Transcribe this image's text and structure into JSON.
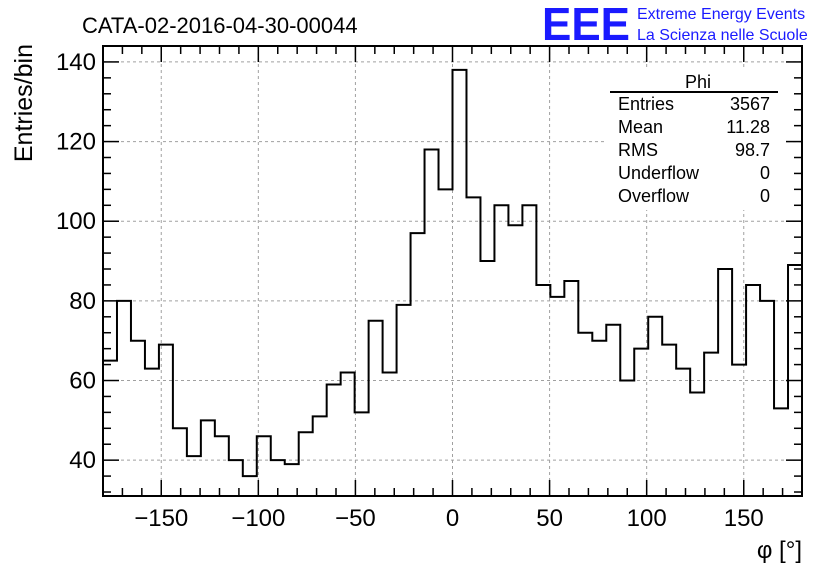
{
  "chart_data": {
    "type": "histogram",
    "title": "CATA-02-2016-04-30-00044",
    "xlabel": "φ [°]",
    "ylabel": "Entries/bin",
    "xlim": [
      -180,
      180
    ],
    "ylim": [
      31,
      144
    ],
    "bin_width": 7.2,
    "x_ticks": [
      -150,
      -100,
      -50,
      0,
      50,
      100,
      150
    ],
    "x_tick_labels": [
      "−150",
      "−100",
      "−50",
      "0",
      "50",
      "100",
      "150"
    ],
    "y_ticks": [
      40,
      60,
      80,
      100,
      120,
      140
    ],
    "y_tick_labels": [
      "40",
      "60",
      "80",
      "100",
      "120",
      "140"
    ],
    "grid": true,
    "values": [
      65,
      80,
      70,
      63,
      69,
      48,
      41,
      50,
      46,
      40,
      36,
      46,
      40,
      39,
      47,
      51,
      59,
      62,
      52,
      75,
      62,
      79,
      97,
      118,
      108,
      138,
      106,
      90,
      104,
      99,
      104,
      84,
      81,
      85,
      72,
      70,
      74,
      60,
      68,
      76,
      69,
      63,
      57,
      67,
      88,
      64,
      84,
      80,
      53,
      89
    ],
    "stats": {
      "title": "Phi",
      "rows": [
        {
          "label": "Entries",
          "value": "3567"
        },
        {
          "label": "Mean",
          "value": "11.28"
        },
        {
          "label": "RMS",
          "value": "98.7"
        },
        {
          "label": "Underflow",
          "value": "0"
        },
        {
          "label": "Overflow",
          "value": "0"
        }
      ]
    },
    "logo": {
      "mark": "EEE",
      "line1": "Extreme Energy Events",
      "line2": "La Scienza nelle Scuole",
      "color": "#1a1aff"
    },
    "line_color": "#000000",
    "grid_color": "#a0a0a0"
  }
}
